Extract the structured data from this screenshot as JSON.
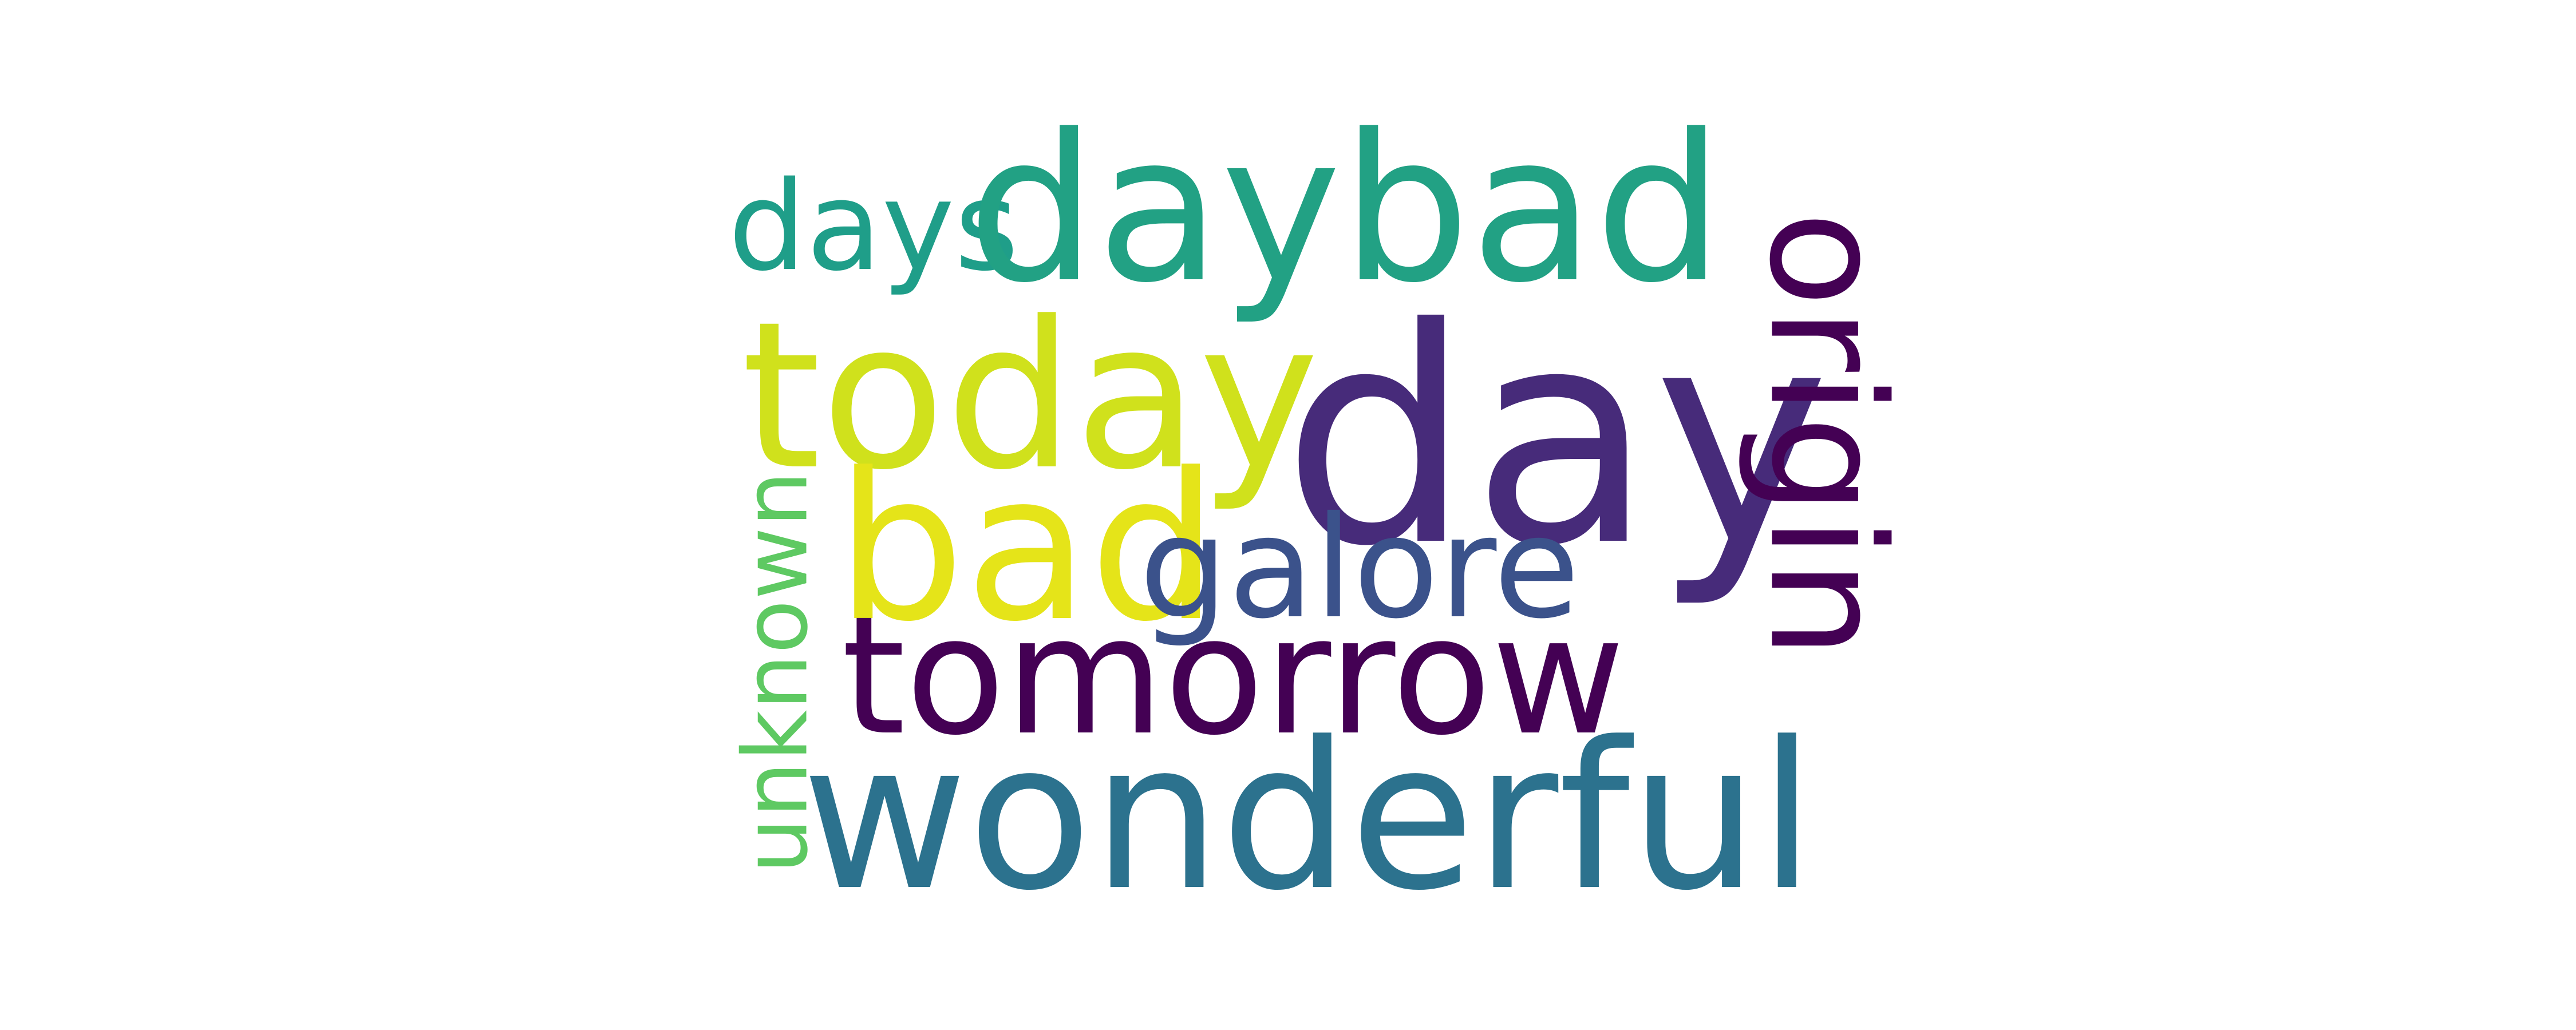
{
  "words": [
    {
      "key": "day",
      "text": "day",
      "color": "#472b7a"
    },
    {
      "key": "daybad",
      "text": "daybad",
      "color": "#22a184"
    },
    {
      "key": "days",
      "text": "days",
      "color": "#1f9e89"
    },
    {
      "key": "today",
      "text": "today",
      "color": "#d0e11c"
    },
    {
      "key": "bad",
      "text": "bad",
      "color": "#e5e419"
    },
    {
      "key": "galore",
      "text": "galore",
      "color": "#3b528b"
    },
    {
      "key": "tomorrow",
      "text": "tomorrow",
      "color": "#440154"
    },
    {
      "key": "wonderful",
      "text": "wonderful",
      "color": "#2c728e"
    },
    {
      "key": "origin",
      "text": "origin",
      "color": "#440154"
    },
    {
      "key": "unknown",
      "text": "unknown",
      "color": "#5ec962"
    }
  ]
}
